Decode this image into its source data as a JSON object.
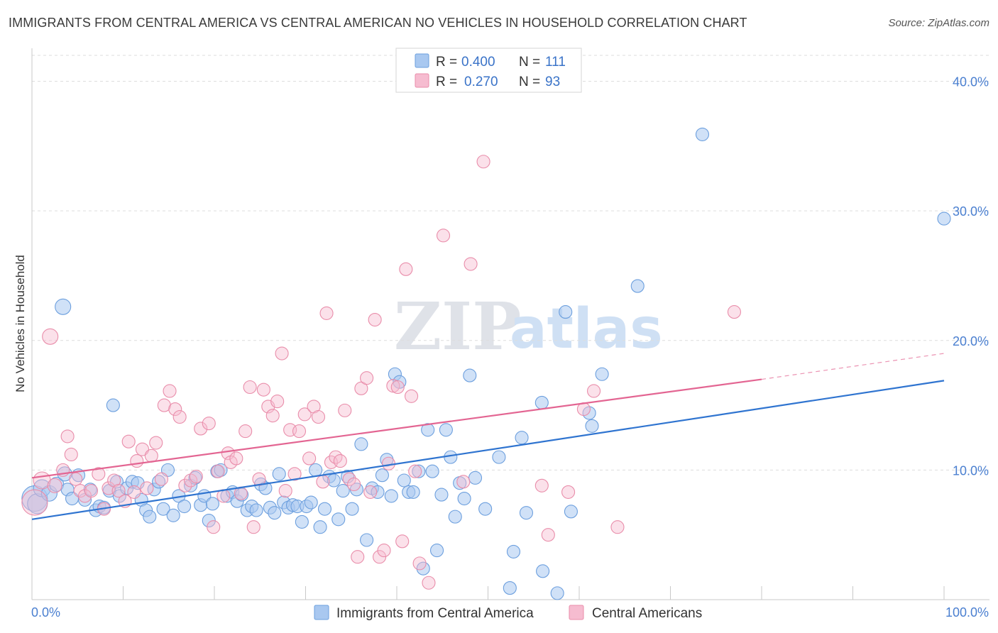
{
  "header": {
    "title": "IMMIGRANTS FROM CENTRAL AMERICA VS CENTRAL AMERICAN NO VEHICLES IN HOUSEHOLD CORRELATION CHART",
    "source": "Source: ZipAtlas.com"
  },
  "watermark": {
    "zip": "ZIP",
    "atlas": "atlas"
  },
  "colors": {
    "blue_fill": "#a9c8f0",
    "blue_stroke": "#6c9fde",
    "blue_line": "#2f74d0",
    "pink_fill": "#f6bcd0",
    "pink_stroke": "#e98daa",
    "pink_line": "#e36592",
    "tick_text": "#4a7fd0",
    "grid": "#dddddd"
  },
  "chart_data": {
    "type": "scatter",
    "title": "IMMIGRANTS FROM CENTRAL AMERICA VS CENTRAL AMERICAN NO VEHICLES IN HOUSEHOLD CORRELATION CHART",
    "xlabel": "",
    "ylabel": "No Vehicles in Household",
    "xlim": [
      0,
      100
    ],
    "ylim": [
      0,
      42
    ],
    "x_tick_labels": [
      "0.0%",
      "100.0%"
    ],
    "y_ticks": [
      10,
      20,
      30,
      40
    ],
    "y_tick_labels": [
      "10.0%",
      "20.0%",
      "30.0%",
      "40.0%"
    ],
    "legend": {
      "entries": [
        {
          "r_label": "R = ",
          "r_value": "0.400",
          "n_label": "N = ",
          "n_value": "111"
        },
        {
          "r_label": "R = ",
          "r_value": "0.270",
          "n_label": "N = ",
          "n_value": "93"
        }
      ]
    },
    "series": [
      {
        "name": "Immigrants from Central America",
        "color": "#a9c8f0",
        "trend": {
          "x": [
            0,
            100
          ],
          "y": [
            6.2,
            16.9
          ]
        },
        "points": [
          [
            0.3,
            7.8,
            18
          ],
          [
            0.6,
            7.4,
            14
          ],
          [
            1.1,
            8.6,
            12
          ],
          [
            1.9,
            8.2,
            11
          ],
          [
            2.7,
            8.9,
            10
          ],
          [
            3.4,
            22.6,
            11
          ],
          [
            3.6,
            9.7,
            10
          ],
          [
            3.9,
            8.5,
            9
          ],
          [
            4.4,
            7.8,
            9
          ],
          [
            5.1,
            9.6,
            9
          ],
          [
            5.8,
            7.7,
            9
          ],
          [
            6.4,
            8.5,
            9
          ],
          [
            7.0,
            6.9,
            9
          ],
          [
            7.4,
            7.2,
            9
          ],
          [
            7.9,
            7.1,
            9
          ],
          [
            8.5,
            8.4,
            9
          ],
          [
            8.9,
            15.0,
            9
          ],
          [
            9.3,
            9.1,
            9
          ],
          [
            9.6,
            8.0,
            9
          ],
          [
            10.4,
            8.6,
            9
          ],
          [
            11.0,
            9.1,
            9
          ],
          [
            11.6,
            9.0,
            9
          ],
          [
            12.0,
            7.7,
            9
          ],
          [
            12.5,
            6.9,
            9
          ],
          [
            12.9,
            6.4,
            9
          ],
          [
            13.4,
            8.5,
            9
          ],
          [
            13.9,
            9.1,
            9
          ],
          [
            14.4,
            7.0,
            9
          ],
          [
            14.9,
            10.0,
            9
          ],
          [
            15.5,
            6.5,
            9
          ],
          [
            16.1,
            8.0,
            9
          ],
          [
            16.7,
            7.2,
            9
          ],
          [
            17.4,
            8.8,
            9
          ],
          [
            17.9,
            9.4,
            9
          ],
          [
            18.5,
            7.3,
            9
          ],
          [
            18.9,
            8.0,
            9
          ],
          [
            19.4,
            6.1,
            9
          ],
          [
            19.8,
            7.4,
            9
          ],
          [
            20.3,
            9.9,
            9
          ],
          [
            20.7,
            10.0,
            9
          ],
          [
            21.4,
            8.0,
            9
          ],
          [
            22.0,
            8.3,
            9
          ],
          [
            22.5,
            7.6,
            9
          ],
          [
            23.0,
            8.1,
            9
          ],
          [
            23.6,
            6.9,
            9
          ],
          [
            24.1,
            7.2,
            9
          ],
          [
            24.6,
            6.9,
            9
          ],
          [
            25.1,
            8.9,
            9
          ],
          [
            25.6,
            8.6,
            9
          ],
          [
            26.1,
            7.1,
            9
          ],
          [
            26.6,
            6.7,
            9
          ],
          [
            27.1,
            9.7,
            9
          ],
          [
            27.6,
            7.5,
            9
          ],
          [
            28.1,
            7.1,
            9
          ],
          [
            28.6,
            7.3,
            9
          ],
          [
            29.1,
            7.2,
            9
          ],
          [
            29.6,
            6.0,
            9
          ],
          [
            30.1,
            7.2,
            9
          ],
          [
            30.6,
            7.5,
            9
          ],
          [
            31.1,
            10.0,
            9
          ],
          [
            31.6,
            5.6,
            9
          ],
          [
            32.1,
            7.0,
            9
          ],
          [
            32.6,
            9.5,
            9
          ],
          [
            33.1,
            9.2,
            9
          ],
          [
            33.6,
            6.2,
            9
          ],
          [
            34.1,
            8.4,
            9
          ],
          [
            34.6,
            9.5,
            9
          ],
          [
            35.1,
            7.0,
            9
          ],
          [
            35.6,
            8.5,
            9
          ],
          [
            36.1,
            12.0,
            9
          ],
          [
            36.7,
            4.6,
            9
          ],
          [
            37.3,
            8.6,
            9
          ],
          [
            37.9,
            8.3,
            9
          ],
          [
            38.4,
            9.6,
            9
          ],
          [
            38.9,
            10.8,
            9
          ],
          [
            39.4,
            8.0,
            9
          ],
          [
            39.8,
            17.4,
            9
          ],
          [
            40.3,
            16.8,
            9
          ],
          [
            40.8,
            9.2,
            9
          ],
          [
            41.3,
            8.3,
            9
          ],
          [
            41.8,
            8.3,
            9
          ],
          [
            42.4,
            9.9,
            9
          ],
          [
            42.9,
            2.4,
            9
          ],
          [
            43.4,
            13.1,
            9
          ],
          [
            43.9,
            9.9,
            9
          ],
          [
            44.4,
            3.8,
            9
          ],
          [
            44.9,
            8.1,
            9
          ],
          [
            45.4,
            13.1,
            9
          ],
          [
            45.9,
            11.0,
            9
          ],
          [
            46.4,
            6.4,
            9
          ],
          [
            46.9,
            9.0,
            9
          ],
          [
            47.4,
            7.8,
            9
          ],
          [
            48.0,
            17.3,
            9
          ],
          [
            48.6,
            9.4,
            9
          ],
          [
            49.7,
            7.0,
            9
          ],
          [
            51.2,
            11.0,
            9
          ],
          [
            52.4,
            0.9,
            9
          ],
          [
            52.8,
            3.7,
            9
          ],
          [
            53.7,
            12.5,
            9
          ],
          [
            54.2,
            6.7,
            9
          ],
          [
            55.9,
            15.2,
            9
          ],
          [
            56.0,
            2.2,
            9
          ],
          [
            57.6,
            0.5,
            9
          ],
          [
            58.5,
            22.2,
            9
          ],
          [
            59.1,
            6.8,
            9
          ],
          [
            61.1,
            14.4,
            9
          ],
          [
            61.4,
            13.4,
            9
          ],
          [
            62.5,
            17.4,
            9
          ],
          [
            66.4,
            24.2,
            9
          ],
          [
            73.5,
            35.9,
            9
          ],
          [
            100.0,
            29.4,
            9
          ]
        ]
      },
      {
        "name": "Central Americans",
        "color": "#f6bcd0",
        "trend": {
          "x": [
            0,
            80
          ],
          "y": [
            9.4,
            17.0
          ]
        },
        "trend_dashed": {
          "x": [
            80,
            100
          ],
          "y": [
            17.0,
            19.0
          ]
        },
        "points": [
          [
            0.3,
            7.5,
            18
          ],
          [
            1.1,
            9.2,
            12
          ],
          [
            2.0,
            20.3,
            11
          ],
          [
            2.5,
            8.8,
            10
          ],
          [
            3.4,
            10.0,
            9
          ],
          [
            3.9,
            12.6,
            9
          ],
          [
            4.3,
            11.2,
            9
          ],
          [
            4.8,
            9.3,
            9
          ],
          [
            5.3,
            8.4,
            9
          ],
          [
            5.8,
            8.0,
            9
          ],
          [
            6.5,
            8.4,
            9
          ],
          [
            7.3,
            9.7,
            9
          ],
          [
            7.9,
            7.0,
            9
          ],
          [
            8.4,
            8.6,
            9
          ],
          [
            9.0,
            9.2,
            9
          ],
          [
            9.5,
            8.4,
            9
          ],
          [
            10.2,
            7.6,
            9
          ],
          [
            10.6,
            12.2,
            9
          ],
          [
            11.2,
            8.3,
            9
          ],
          [
            11.5,
            10.7,
            9
          ],
          [
            12.1,
            11.6,
            9
          ],
          [
            12.6,
            8.6,
            9
          ],
          [
            13.1,
            11.1,
            9
          ],
          [
            13.6,
            12.1,
            9
          ],
          [
            14.2,
            9.3,
            9
          ],
          [
            14.5,
            15.0,
            9
          ],
          [
            15.1,
            16.1,
            9
          ],
          [
            15.7,
            14.7,
            9
          ],
          [
            16.2,
            14.1,
            9
          ],
          [
            16.8,
            8.8,
            9
          ],
          [
            17.4,
            9.2,
            9
          ],
          [
            18.0,
            9.5,
            9
          ],
          [
            18.5,
            13.2,
            9
          ],
          [
            19.4,
            13.6,
            9
          ],
          [
            19.9,
            5.6,
            9
          ],
          [
            20.4,
            9.9,
            9
          ],
          [
            21.0,
            8.0,
            9
          ],
          [
            21.5,
            11.3,
            9
          ],
          [
            21.8,
            10.6,
            9
          ],
          [
            22.4,
            10.9,
            9
          ],
          [
            22.9,
            8.2,
            9
          ],
          [
            23.4,
            13.0,
            9
          ],
          [
            23.9,
            16.4,
            9
          ],
          [
            24.3,
            5.6,
            9
          ],
          [
            24.9,
            9.3,
            9
          ],
          [
            25.4,
            16.2,
            9
          ],
          [
            25.9,
            14.9,
            9
          ],
          [
            26.4,
            14.2,
            9
          ],
          [
            26.9,
            15.3,
            9
          ],
          [
            27.4,
            19.0,
            9
          ],
          [
            27.8,
            8.4,
            9
          ],
          [
            28.3,
            13.1,
            9
          ],
          [
            28.8,
            9.7,
            9
          ],
          [
            29.3,
            13.0,
            9
          ],
          [
            29.9,
            14.3,
            9
          ],
          [
            30.4,
            10.9,
            9
          ],
          [
            30.9,
            14.9,
            9
          ],
          [
            31.4,
            14.1,
            9
          ],
          [
            31.9,
            9.1,
            9
          ],
          [
            32.3,
            22.1,
            9
          ],
          [
            32.8,
            10.6,
            9
          ],
          [
            33.3,
            11.0,
            9
          ],
          [
            33.8,
            10.7,
            9
          ],
          [
            34.3,
            14.6,
            9
          ],
          [
            34.8,
            9.3,
            9
          ],
          [
            35.3,
            8.9,
            9
          ],
          [
            35.7,
            3.3,
            9
          ],
          [
            36.1,
            16.3,
            9
          ],
          [
            36.7,
            17.1,
            9
          ],
          [
            37.1,
            8.3,
            9
          ],
          [
            37.6,
            21.6,
            9
          ],
          [
            38.1,
            3.3,
            9
          ],
          [
            38.6,
            3.8,
            9
          ],
          [
            39.1,
            10.5,
            9
          ],
          [
            39.6,
            16.5,
            9
          ],
          [
            40.1,
            16.4,
            9
          ],
          [
            40.6,
            4.5,
            9
          ],
          [
            41.0,
            25.5,
            9
          ],
          [
            41.6,
            15.7,
            9
          ],
          [
            42.0,
            9.9,
            9
          ],
          [
            42.5,
            2.8,
            9
          ],
          [
            43.5,
            1.3,
            9
          ],
          [
            45.1,
            28.1,
            9
          ],
          [
            47.3,
            9.1,
            9
          ],
          [
            48.1,
            25.9,
            9
          ],
          [
            49.5,
            33.8,
            9
          ],
          [
            55.9,
            8.8,
            9
          ],
          [
            56.6,
            5.0,
            9
          ],
          [
            58.8,
            8.3,
            9
          ],
          [
            60.5,
            14.7,
            9
          ],
          [
            61.6,
            16.1,
            9
          ],
          [
            64.2,
            5.6,
            9
          ],
          [
            77.0,
            22.2,
            9
          ]
        ]
      }
    ]
  }
}
